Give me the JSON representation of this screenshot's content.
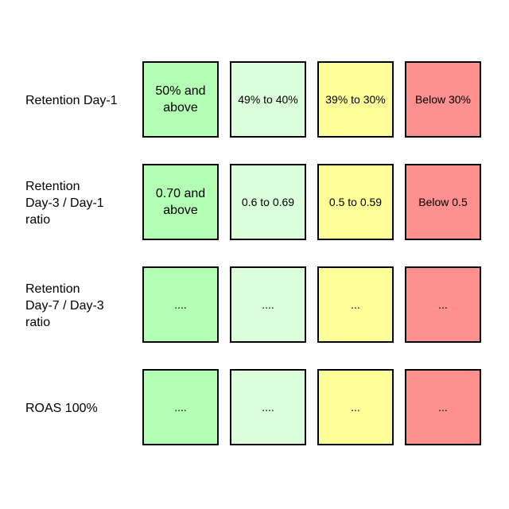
{
  "colors": {
    "tier1": "#b3ffb3",
    "tier2": "#dbffdb",
    "tier3": "#ffff99",
    "tier4": "#ff9090"
  },
  "rows": [
    {
      "label": "Retention Day-1",
      "cells": [
        "50% and\nabove",
        "49% to 40%",
        "39% to 30%",
        "Below 30%"
      ]
    },
    {
      "label": "Retention\nDay-3 / Day-1\nratio",
      "cells": [
        "0.70 and\nabove",
        "0.6 to 0.69",
        "0.5 to 0.59",
        "Below 0.5"
      ]
    },
    {
      "label": "Retention\nDay-7 / Day-3\nratio",
      "cells": [
        "....",
        "....",
        "...",
        "..."
      ]
    },
    {
      "label": "ROAS 100%",
      "cells": [
        "....",
        "....",
        "...",
        "..."
      ]
    }
  ]
}
